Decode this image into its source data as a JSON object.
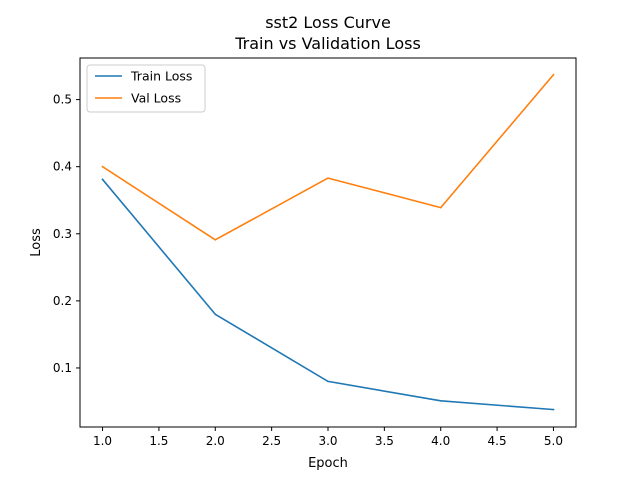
{
  "chart_data": {
    "type": "line",
    "title": "sst2 Loss Curve",
    "subtitle": "Train vs Validation Loss",
    "xlabel": "Epoch",
    "ylabel": "Loss",
    "x": [
      1.0,
      2.0,
      3.0,
      4.0,
      5.0
    ],
    "xlim": [
      0.8,
      5.2
    ],
    "ylim": [
      0.012,
      0.562
    ],
    "xticks": [
      "1.0",
      "1.5",
      "2.0",
      "2.5",
      "3.0",
      "3.5",
      "4.0",
      "4.5",
      "5.0"
    ],
    "yticks": [
      "0.1",
      "0.2",
      "0.3",
      "0.4",
      "0.5"
    ],
    "grid": false,
    "legend_position": "top-left",
    "series": [
      {
        "name": "Train Loss",
        "color": "#1f77b4",
        "values": [
          0.381,
          0.18,
          0.08,
          0.051,
          0.038
        ]
      },
      {
        "name": "Val Loss",
        "color": "#ff7f0e",
        "values": [
          0.4,
          0.291,
          0.383,
          0.339,
          0.537
        ]
      }
    ]
  }
}
